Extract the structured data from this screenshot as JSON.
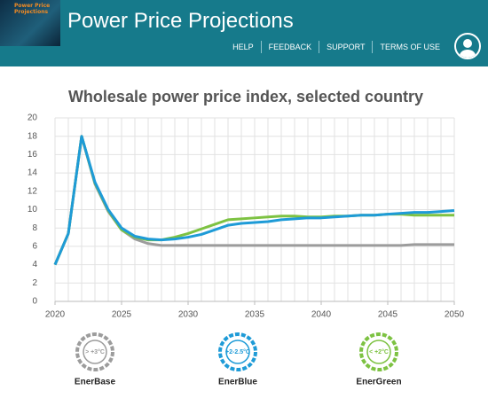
{
  "header": {
    "logo_text": "Power Price Projections",
    "title": "Power Price Projections",
    "nav": [
      "HELP",
      "FEEDBACK",
      "SUPPORT",
      "TERMS OF USE"
    ]
  },
  "chart_data": {
    "type": "line",
    "title": "Wholesale power price index, selected country",
    "x": [
      2020,
      2021,
      2022,
      2023,
      2024,
      2025,
      2026,
      2027,
      2028,
      2029,
      2030,
      2031,
      2032,
      2033,
      2034,
      2035,
      2036,
      2037,
      2038,
      2039,
      2040,
      2041,
      2042,
      2043,
      2044,
      2045,
      2046,
      2047,
      2048,
      2049,
      2050
    ],
    "xlim": [
      2020,
      2050
    ],
    "xticks": [
      2020,
      2025,
      2030,
      2035,
      2040,
      2045,
      2050
    ],
    "ylim": [
      0,
      20
    ],
    "yticks": [
      0,
      2,
      4,
      6,
      8,
      10,
      12,
      14,
      16,
      18,
      20
    ],
    "grid": true,
    "series": [
      {
        "name": "EnerBase",
        "badge": "> +3°C",
        "color": "#9c9c9c",
        "values": [
          4,
          7.4,
          18,
          12.8,
          9.8,
          7.8,
          6.8,
          6.3,
          6.1,
          6.1,
          6.1,
          6.1,
          6.1,
          6.1,
          6.1,
          6.1,
          6.1,
          6.1,
          6.1,
          6.1,
          6.1,
          6.1,
          6.1,
          6.1,
          6.1,
          6.1,
          6.1,
          6.2,
          6.2,
          6.2,
          6.2
        ]
      },
      {
        "name": "EnerBlue",
        "badge": "+2-2.5°C",
        "color": "#1e9bd7",
        "values": [
          4,
          7.4,
          18,
          13,
          10,
          8,
          7.1,
          6.8,
          6.7,
          6.8,
          7.0,
          7.3,
          7.8,
          8.3,
          8.5,
          8.6,
          8.7,
          8.9,
          9.0,
          9.1,
          9.1,
          9.2,
          9.3,
          9.4,
          9.4,
          9.5,
          9.6,
          9.7,
          9.7,
          9.8,
          9.9
        ]
      },
      {
        "name": "EnerGreen",
        "badge": "< +2°C",
        "color": "#7dc242",
        "values": [
          4,
          7.4,
          18,
          12.9,
          9.9,
          7.8,
          7.0,
          6.7,
          6.7,
          7.0,
          7.4,
          7.9,
          8.4,
          8.9,
          9.0,
          9.1,
          9.2,
          9.3,
          9.3,
          9.2,
          9.2,
          9.3,
          9.3,
          9.4,
          9.4,
          9.5,
          9.5,
          9.4,
          9.4,
          9.4,
          9.4
        ]
      }
    ]
  }
}
